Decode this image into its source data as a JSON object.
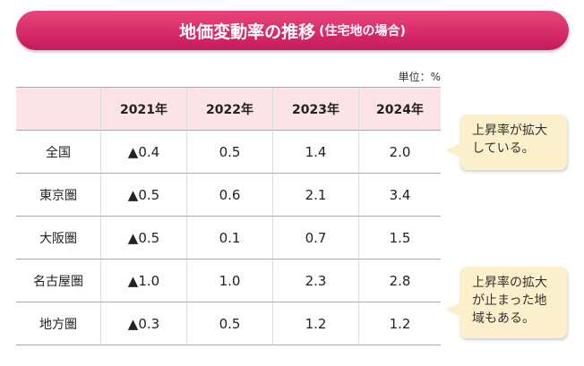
{
  "header": {
    "title": "地価変動率の推移",
    "subtitle": "(住宅地の場合)"
  },
  "unit": "単位：%",
  "table": {
    "header": [
      "",
      "2021年",
      "2022年",
      "2023年",
      "2024年"
    ],
    "rows": [
      [
        "全国",
        "▲0.4",
        "0.5",
        "1.4",
        "2.0"
      ],
      [
        "東京圏",
        "▲0.5",
        "0.6",
        "2.1",
        "3.4"
      ],
      [
        "大阪圏",
        "▲0.5",
        "0.1",
        "0.7",
        "1.5"
      ],
      [
        "名古屋圏",
        "▲1.0",
        "1.0",
        "2.3",
        "2.8"
      ],
      [
        "地方圏",
        "▲0.3",
        "0.5",
        "1.2",
        "1.2"
      ]
    ]
  },
  "callouts": [
    {
      "lines": [
        "上昇率が拡大",
        "している。"
      ]
    },
    {
      "lines": [
        "上昇率の拡大",
        "が止まった地",
        "域もある。"
      ]
    }
  ]
}
